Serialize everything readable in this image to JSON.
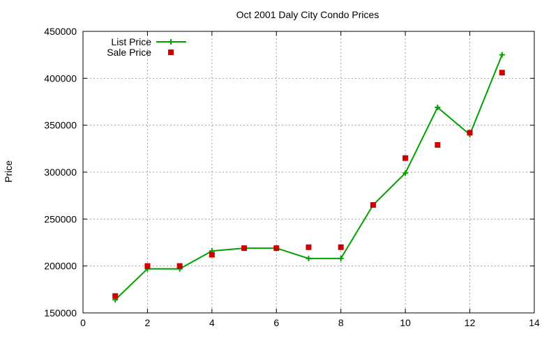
{
  "chart_data": {
    "type": "line",
    "title": "Oct 2001 Daly City Condo Prices",
    "xlabel": "",
    "ylabel": "Price",
    "xlim": [
      0,
      14
    ],
    "ylim": [
      150000,
      450000
    ],
    "x_ticks": [
      0,
      2,
      4,
      6,
      8,
      10,
      12,
      14
    ],
    "y_ticks": [
      150000,
      200000,
      250000,
      300000,
      350000,
      400000,
      450000
    ],
    "grid": true,
    "legend_position": "top-left",
    "series": [
      {
        "name": "List Price",
        "style": "line-with-plus-markers",
        "color": "#00a000",
        "x": [
          1,
          2,
          3,
          4,
          5,
          6,
          7,
          8,
          9,
          10,
          11,
          12,
          13
        ],
        "y": [
          164000,
          197000,
          197000,
          216000,
          219000,
          219000,
          208000,
          208000,
          265000,
          299000,
          369000,
          340000,
          425000
        ]
      },
      {
        "name": "Sale Price",
        "style": "square-markers",
        "color": "#cc0000",
        "x": [
          1,
          2,
          3,
          4,
          5,
          6,
          7,
          8,
          9,
          10,
          11,
          12,
          13
        ],
        "y": [
          168000,
          200000,
          200000,
          212000,
          219000,
          219000,
          220000,
          220000,
          265000,
          315000,
          329000,
          342000,
          406000
        ]
      }
    ]
  }
}
